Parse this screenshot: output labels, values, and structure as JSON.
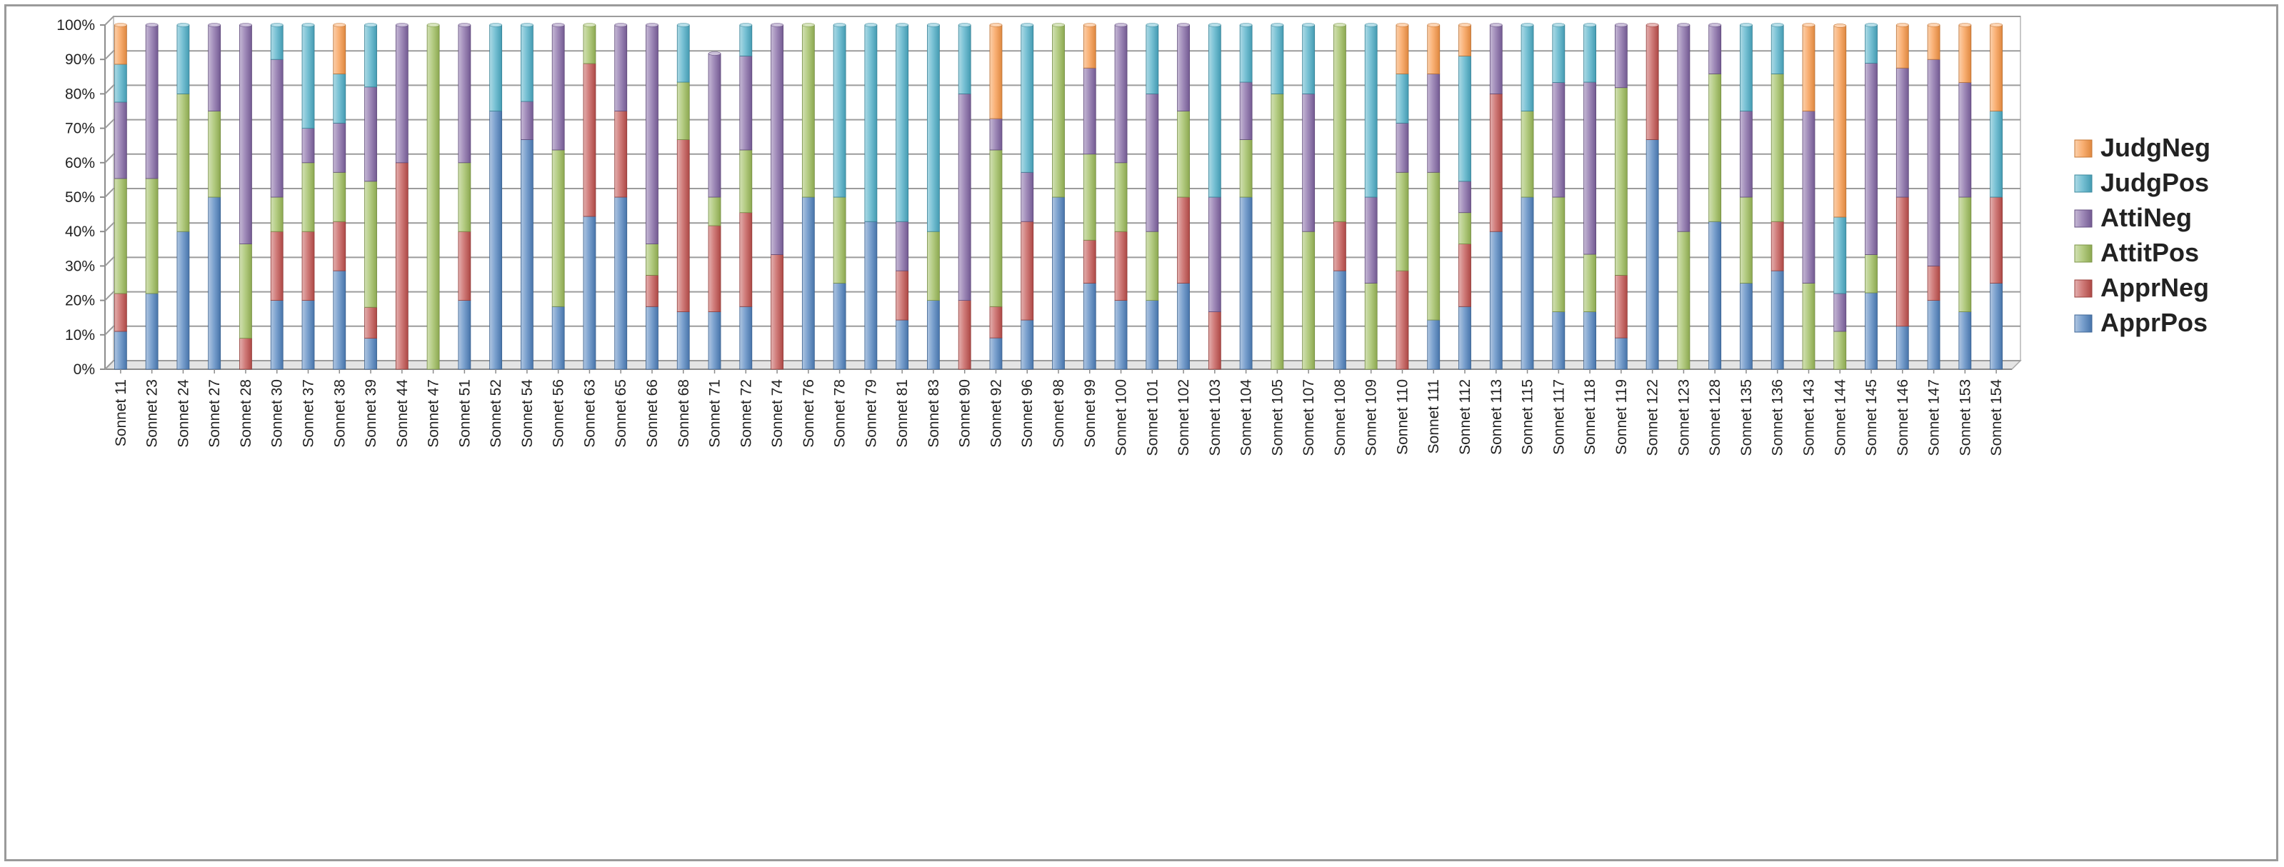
{
  "chart_data": {
    "type": "bar",
    "stacked": true,
    "normalized_percent": true,
    "title": "",
    "xlabel": "",
    "ylabel": "",
    "ylim": [
      0,
      100
    ],
    "y_ticks": [
      "0%",
      "10%",
      "20%",
      "30%",
      "40%",
      "50%",
      "60%",
      "70%",
      "80%",
      "90%",
      "100%"
    ],
    "grid": true,
    "legend_position": "right",
    "categories": [
      "Sonnet 11",
      "Sonnet 23",
      "Sonnet 24",
      "Sonnet 27",
      "Sonnet 28",
      "Sonnet 30",
      "Sonnet 37",
      "Sonnet 38",
      "Sonnet 39",
      "Sonnet 44",
      "Sonnet 47",
      "Sonnet 51",
      "Sonnet 52",
      "Sonnet 54",
      "Sonnet 56",
      "Sonnet 63",
      "Sonnet 65",
      "Sonnet 66",
      "Sonnet 68",
      "Sonnet 71",
      "Sonnet 72",
      "Sonnet 74",
      "Sonnet 76",
      "Sonnet 78",
      "Sonnet 79",
      "Sonnet 81",
      "Sonnet 83",
      "Sonnet 90",
      "Sonnet 92",
      "Sonnet 96",
      "Sonnet 98",
      "Sonnet 99",
      "Sonnet 100",
      "Sonnet 101",
      "Sonnet 102",
      "Sonnet 103",
      "Sonnet 104",
      "Sonnet 105",
      "Sonnet 107",
      "Sonnet 108",
      "Sonnet 109",
      "Sonnet 110",
      "Sonnet 111",
      "Sonnet 112",
      "Sonnet 113",
      "Sonnet 115",
      "Sonnet 117",
      "Sonnet 118",
      "Sonnet 119",
      "Sonnet 122",
      "Sonnet 123",
      "Sonnet 128",
      "Sonnet 135",
      "Sonnet 136",
      "Sonnet 143",
      "Sonnet 144",
      "Sonnet 145",
      "Sonnet 146",
      "Sonnet 147",
      "Sonnet 153",
      "Sonnet 154"
    ],
    "series": [
      {
        "name": "ApprPos",
        "color": "#4f81bd",
        "values": [
          11,
          22,
          40,
          50,
          0,
          20,
          20,
          28.6,
          9,
          0,
          0,
          20,
          75,
          66.7,
          18.2,
          44.4,
          50,
          18.2,
          16.7,
          16.7,
          18.2,
          0,
          50,
          25,
          42.9,
          14.3,
          20,
          0,
          9.1,
          14.3,
          50,
          25,
          20,
          20,
          25,
          0,
          50,
          0,
          0,
          28.6,
          0,
          0,
          14.3,
          18.2,
          40,
          50,
          16.7,
          16.7,
          9.1,
          66.7,
          0,
          42.9,
          25,
          28.6,
          0,
          0,
          22.2,
          12.5,
          20,
          16.7,
          25
        ]
      },
      {
        "name": "ApprNeg",
        "color": "#c0504d",
        "values": [
          11,
          0,
          0,
          0,
          9,
          20,
          20,
          14.3,
          9,
          60,
          0,
          20,
          0,
          0,
          0,
          44.4,
          25,
          9.1,
          50,
          25,
          27.3,
          33.3,
          0,
          0,
          0,
          14.3,
          0,
          20,
          9.1,
          28.6,
          0,
          12.5,
          20,
          0,
          25,
          16.7,
          0,
          0,
          0,
          14.3,
          0,
          28.6,
          0,
          18.2,
          40,
          0,
          0,
          0,
          18.2,
          33.3,
          0,
          0,
          0,
          14.3,
          0,
          0,
          0,
          37.5,
          10,
          0,
          25
        ]
      },
      {
        "name": "AttitPos",
        "color": "#9bbb59",
        "values": [
          33.4,
          33.4,
          40,
          25,
          27.4,
          10,
          20,
          14.3,
          36.6,
          0,
          100,
          20,
          0,
          0,
          45.5,
          11.2,
          0,
          9.1,
          16.7,
          8.3,
          18.2,
          0,
          50,
          25,
          0,
          0,
          20,
          0,
          45.5,
          0,
          50,
          25,
          20,
          20,
          25,
          0,
          16.7,
          80,
          40,
          57.1,
          25,
          28.6,
          42.9,
          9.1,
          0,
          25,
          33.3,
          16.7,
          54.5,
          0,
          40,
          42.9,
          25,
          42.9,
          25,
          11,
          11.1,
          0,
          0,
          33.3,
          0
        ]
      },
      {
        "name": "AttiNeg",
        "color": "#8064a2",
        "values": [
          22.2,
          44.6,
          0,
          25,
          63.6,
          40,
          10,
          14.3,
          27.4,
          40,
          0,
          40,
          0,
          11.1,
          36.3,
          0,
          25,
          63.6,
          0,
          41.7,
          27.3,
          66.7,
          0,
          0,
          0,
          14.3,
          0,
          60,
          9.1,
          14.3,
          0,
          25,
          40,
          40,
          25,
          33.3,
          16.7,
          0,
          40,
          0,
          25,
          14.3,
          28.6,
          9.1,
          20,
          0,
          33.3,
          50,
          18.2,
          0,
          60,
          14.2,
          25,
          0,
          50,
          11,
          55.6,
          37.5,
          60,
          33.3,
          0
        ]
      },
      {
        "name": "JudgPos",
        "color": "#4bacc6",
        "values": [
          11,
          0,
          20,
          0,
          0,
          10,
          30,
          14.3,
          18,
          0,
          0,
          0,
          25,
          22.2,
          0,
          0,
          0,
          0,
          16.6,
          0,
          9,
          0,
          0,
          50,
          57.1,
          57.1,
          60,
          20,
          0,
          42.8,
          0,
          0,
          0,
          20,
          0,
          50,
          16.6,
          20,
          20,
          0,
          50,
          14.3,
          0,
          36.4,
          0,
          25,
          16.7,
          16.6,
          0,
          0,
          0,
          0,
          25,
          14.2,
          0,
          22.2,
          11.1,
          0,
          0,
          0,
          25
        ]
      },
      {
        "name": "JudgNeg",
        "color": "#f79646",
        "values": [
          11.4,
          0,
          0,
          0,
          0,
          0,
          0,
          14.2,
          0,
          0,
          0,
          0,
          0,
          0,
          0,
          0,
          0,
          0,
          0,
          0,
          0,
          0,
          0,
          0,
          0,
          0,
          0,
          0,
          27.2,
          0,
          0,
          12.5,
          0,
          0,
          0,
          0,
          0,
          0,
          0,
          0,
          0,
          14.2,
          14.2,
          9,
          0,
          0,
          0,
          0,
          0,
          0,
          0,
          0,
          0,
          0,
          25,
          55.6,
          0,
          12.5,
          10,
          16.7,
          25
        ]
      }
    ]
  }
}
